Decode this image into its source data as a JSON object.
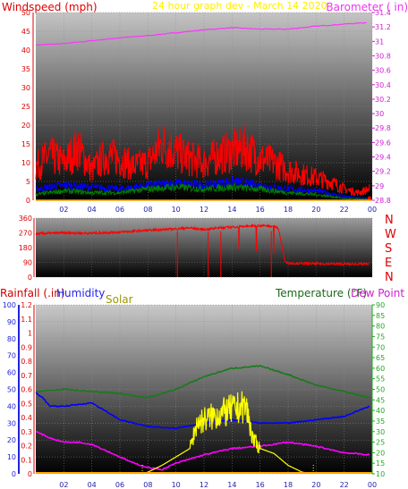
{
  "colors": {
    "windspeed": "#ff0000",
    "gust": "#ff0000",
    "avg": "#0000ff",
    "low": "#008000",
    "barometer": "#ff33ff",
    "direction": "#ff0000",
    "rainfall": "#ff0000",
    "humidity": "#0000ff",
    "solar": "#ffff00",
    "temperature": "#1a7a1a",
    "dewpoint": "#ff00ff",
    "title": "#ffee00",
    "rain_axis": "#ff0000",
    "hum_axis": "#2222dd",
    "temp_axis": "#22bb22"
  },
  "chart_data": [
    {
      "type": "line",
      "title": "24 hour graph dev - March 14 2020",
      "ylabel": "Windspeed (mph)",
      "y2label": "Barometer ( in)",
      "ylim": [
        0,
        50
      ],
      "y2lim": [
        28.8,
        31.4
      ],
      "xlim": [
        0,
        24
      ],
      "x_ticks": [
        "02",
        "04",
        "06",
        "08",
        "10",
        "12",
        "14",
        "16",
        "18",
        "20",
        "22",
        "00"
      ],
      "y_ticks": [
        "0",
        "5",
        "10",
        "15",
        "20",
        "25",
        "30",
        "35",
        "40",
        "45",
        "50"
      ],
      "y2_ticks": [
        "28.8",
        "29",
        "29.2",
        "29.4",
        "29.6",
        "29.8",
        "30",
        "30.2",
        "30.4",
        "30.6",
        "30.8",
        "31",
        "31.2",
        "31.4"
      ],
      "grid": true,
      "series": [
        {
          "name": "Barometer",
          "axis": "y2",
          "x": [
            0,
            2,
            4,
            6,
            8,
            10,
            12,
            14,
            16,
            18,
            20,
            22,
            23.6
          ],
          "values": [
            30.95,
            30.97,
            31.01,
            31.05,
            31.08,
            31.12,
            31.16,
            31.19,
            31.17,
            31.17,
            31.21,
            31.24,
            31.26
          ]
        },
        {
          "name": "Gust",
          "axis": "y",
          "x": [
            0,
            1,
            2,
            3,
            4,
            5,
            6,
            7,
            8,
            9,
            10,
            11,
            12,
            13,
            14,
            15,
            16,
            17,
            18,
            19,
            20,
            21,
            22,
            23,
            23.8
          ],
          "values": [
            9,
            12,
            10,
            14,
            8,
            12,
            11,
            9,
            10,
            15,
            13,
            11,
            10,
            12,
            13,
            14,
            11,
            10,
            8,
            7,
            6,
            5,
            3,
            2,
            3
          ]
        },
        {
          "name": "Average",
          "axis": "y",
          "x": [
            0,
            2,
            4,
            6,
            8,
            10,
            12,
            14,
            16,
            18,
            20,
            22,
            23.8
          ],
          "values": [
            3,
            4,
            3.5,
            3,
            4,
            4.5,
            4,
            5,
            4,
            3,
            2.5,
            1,
            0.5
          ]
        },
        {
          "name": "Low",
          "axis": "y",
          "x": [
            0,
            2,
            4,
            6,
            8,
            10,
            12,
            14,
            16,
            18,
            20,
            22,
            23.8
          ],
          "values": [
            1.5,
            2.5,
            2,
            2,
            3,
            3.5,
            3,
            3.5,
            3,
            2,
            1.5,
            0.5,
            0.2
          ]
        }
      ]
    },
    {
      "type": "scatter",
      "ylim": [
        0,
        360
      ],
      "xlim": [
        0,
        24
      ],
      "y_ticks": [
        "0",
        "90",
        "180",
        "270",
        "360"
      ],
      "compass": [
        "N",
        "W",
        "S",
        "E",
        "N"
      ],
      "grid": true,
      "series": [
        {
          "name": "Direction",
          "x": [
            0,
            2,
            4,
            6,
            8,
            9,
            10,
            11,
            12,
            13,
            14,
            15,
            16,
            17,
            17.3,
            17.8,
            18,
            20,
            22,
            23.8
          ],
          "values": [
            265,
            270,
            268,
            275,
            285,
            290,
            295,
            300,
            290,
            300,
            305,
            310,
            315,
            310,
            300,
            90,
            85,
            82,
            80,
            80
          ]
        }
      ]
    },
    {
      "type": "line",
      "ylabel": "Rainfall (.in)",
      "y2label": "Humidity",
      "y3label": "Solar",
      "y4label": "Temperature (°F)",
      "y5label": "Dew Point (°F)",
      "rain_lim": [
        0,
        1.2
      ],
      "hum_lim": [
        0,
        100
      ],
      "temp_lim": [
        10,
        90
      ],
      "xlim": [
        0,
        24
      ],
      "x_ticks": [
        "02",
        "04",
        "06",
        "08",
        "10",
        "12",
        "14",
        "16",
        "18",
        "20",
        "22",
        "00"
      ],
      "rain_ticks": [
        "0",
        "0.1",
        "0.2",
        "0.3",
        "0.4",
        "0.5",
        "0.6",
        "0.7",
        "0.8",
        "0.9",
        "1",
        "1.1",
        "1.2"
      ],
      "hum_ticks": [
        "0",
        "10",
        "20",
        "30",
        "40",
        "50",
        "60",
        "70",
        "80",
        "90",
        "100"
      ],
      "temp_ticks": [
        "10",
        "15",
        "20",
        "25",
        "30",
        "35",
        "40",
        "45",
        "50",
        "55",
        "60",
        "65",
        "70",
        "75",
        "80",
        "85",
        "90"
      ],
      "grid": true,
      "series": [
        {
          "name": "Temperature",
          "axis": "temp",
          "x": [
            0,
            2,
            4,
            6,
            8,
            10,
            12,
            14,
            16,
            18,
            20,
            22,
            23.8
          ],
          "values": [
            49,
            50,
            49,
            48,
            46,
            50,
            56,
            60,
            61,
            57,
            52,
            49,
            46
          ]
        },
        {
          "name": "Humidity",
          "axis": "hum",
          "x": [
            0,
            0.5,
            1,
            2,
            4,
            6,
            8,
            10,
            12,
            14,
            16,
            18,
            20,
            22,
            23.8
          ],
          "values": [
            48,
            45,
            40,
            40,
            42,
            32,
            28,
            27,
            30,
            32,
            30,
            30,
            32,
            34,
            40
          ]
        },
        {
          "name": "Dew Point",
          "axis": "temp",
          "x": [
            0,
            1,
            2,
            3,
            4,
            5,
            6,
            7,
            8,
            9,
            10,
            12,
            14,
            16,
            18,
            20,
            22,
            23.8
          ],
          "values": [
            30,
            27,
            25,
            25,
            24,
            21,
            18,
            15,
            13,
            12,
            15,
            19,
            22,
            23,
            25,
            23,
            20,
            19
          ]
        },
        {
          "name": "Solar",
          "axis": "hum",
          "x": [
            7.6,
            8,
            9,
            10,
            11,
            11.5,
            12,
            13,
            14,
            15,
            15.5,
            16,
            17,
            18,
            19,
            19.8
          ],
          "values": [
            0,
            1,
            5,
            10,
            15,
            30,
            32,
            35,
            38,
            40,
            20,
            15,
            12,
            5,
            1,
            0
          ]
        },
        {
          "name": "Rainfall",
          "axis": "rain",
          "x": [
            0,
            24
          ],
          "values": [
            0,
            0
          ]
        }
      ]
    }
  ]
}
